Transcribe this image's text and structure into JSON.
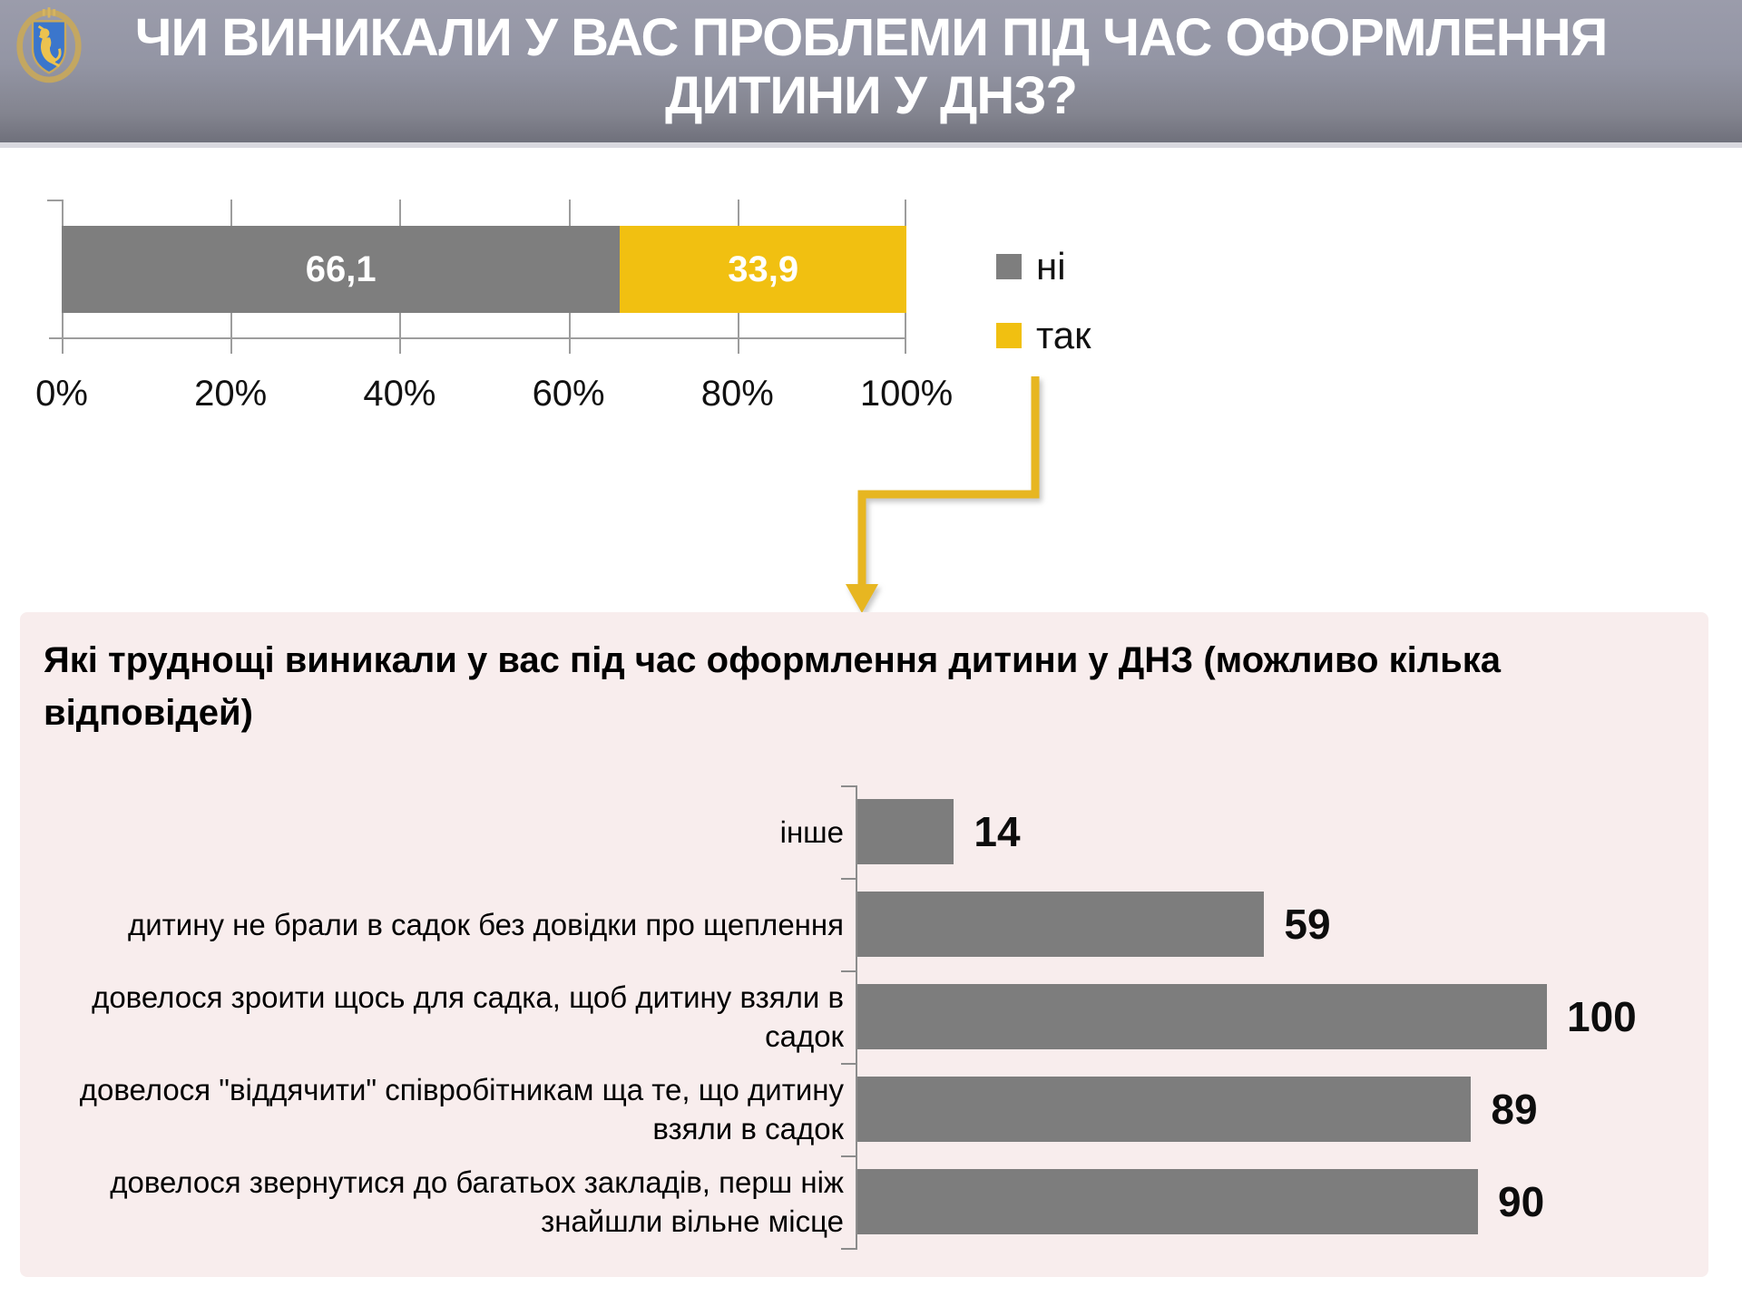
{
  "header": {
    "title": "ЧИ ВИНИКАЛИ У ВАС ПРОБЛЕМИ ПІД ЧАС ОФОРМЛЕННЯ\nДИТИНИ У ДНЗ?",
    "emblem_icon": "coat-of-arms-icon"
  },
  "colors": {
    "answer_no": "#7e7e7e",
    "answer_yes": "#f1c011",
    "arrow": "#e7b621",
    "panel_background": "#f8eded",
    "detail_bar": "#7d7d7d",
    "header_text": "#ffffff"
  },
  "top_chart": {
    "segments": [
      {
        "name": "ні",
        "value": 66.1,
        "label": "66,1",
        "color": "#7e7e7e"
      },
      {
        "name": "так",
        "value": 33.9,
        "label": "33,9",
        "color": "#f1c011"
      }
    ],
    "ticks": [
      "0%",
      "20%",
      "40%",
      "60%",
      "80%",
      "100%"
    ],
    "legend": [
      {
        "label": "ні",
        "color": "#7e7e7e"
      },
      {
        "label": "так",
        "color": "#f1c011"
      }
    ]
  },
  "bottom_panel": {
    "title": "Які труднощі виникали у вас під час оформлення дитини у ДНЗ (можливо кілька\nвідповідей)",
    "rows": [
      {
        "label": "інше",
        "value": 14,
        "value_label": "14"
      },
      {
        "label": "дитину не брали в садок без довідки про щеплення",
        "value": 59,
        "value_label": "59"
      },
      {
        "label": "довелося зроити щось для садка, щоб дитину взяли в\nсадок",
        "value": 100,
        "value_label": "100"
      },
      {
        "label": "довелося \"віддячити\" співробітникам ща те, що дитину\nвзяли в садок",
        "value": 89,
        "value_label": "89"
      },
      {
        "label": "довелося звернутися до багатьох закладів, перш ніж\nзнайшли вільне місце",
        "value": 90,
        "value_label": "90"
      }
    ]
  },
  "chart_data": [
    {
      "type": "bar",
      "orientation": "horizontal-stacked",
      "title": "ЧИ ВИНИКАЛИ У ВАС ПРОБЛЕМИ ПІД ЧАС ОФОРМЛЕННЯ ДИТИНИ У ДНЗ?",
      "series": [
        {
          "name": "ні",
          "values": [
            66.1
          ]
        },
        {
          "name": "так",
          "values": [
            33.9
          ]
        }
      ],
      "value_labels": [
        "66,1",
        "33,9"
      ],
      "x_ticks": [
        "0%",
        "20%",
        "40%",
        "60%",
        "80%",
        "100%"
      ],
      "xlim": [
        0,
        100
      ],
      "legend": [
        "ні",
        "так"
      ],
      "legend_position": "right",
      "colors": [
        "#7e7e7e",
        "#f1c011"
      ],
      "grid": true
    },
    {
      "type": "bar",
      "orientation": "horizontal",
      "title": "Які труднощі виникали у вас під час оформлення дитини у ДНЗ (можливо кілька відповідей)",
      "categories": [
        "інше",
        "дитину не брали в садок без довідки про щеплення",
        "довелося зроити щось для садка, щоб дитину взяли в садок",
        "довелося \"віддячити\" співробітникам ща те, що дитину взяли в садок",
        "довелося звернутися до багатьох закладів, перш ніж знайшли вільне місце"
      ],
      "values": [
        14,
        59,
        100,
        89,
        90
      ],
      "xlim": [
        0,
        100
      ],
      "grid": false,
      "bar_color": "#7d7d7d",
      "value_labels": [
        "14",
        "59",
        "100",
        "89",
        "90"
      ]
    }
  ]
}
